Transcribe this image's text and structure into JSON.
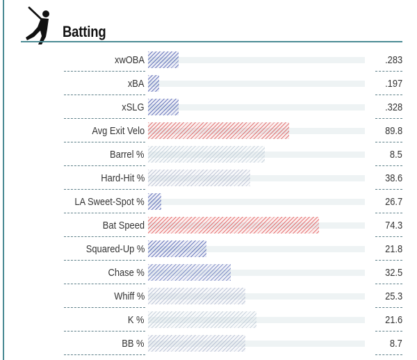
{
  "header": {
    "title": "Batting",
    "icon": "batter-icon"
  },
  "colors": {
    "accent": "#4a8a94"
  },
  "chart_data": {
    "type": "bar",
    "orientation": "horizontal",
    "title": "Batting",
    "categories": [
      "xwOBA",
      "xBA",
      "xSLG",
      "Avg Exit Velo",
      "Barrel %",
      "Hard-Hit %",
      "LA Sweet-Spot %",
      "Bat Speed",
      "Squared-Up %",
      "Chase %",
      "Whiff %",
      "K %",
      "BB %"
    ],
    "values": [
      "283",
      "197",
      "328",
      "89.8",
      "8.5",
      "38.6",
      "26.7",
      "74.3",
      "21.8",
      "32.5",
      "25.3",
      "21.6",
      "8.7"
    ],
    "value_labels": [
      ".283",
      ".197",
      ".328",
      "89.8",
      "8.5",
      "38.6",
      "26.7",
      "74.3",
      "21.8",
      "32.5",
      "25.3",
      "21.6",
      "8.7"
    ],
    "percentile_fill": [
      14,
      5,
      14,
      65,
      54,
      47,
      6,
      79,
      27,
      38,
      45,
      50,
      45
    ],
    "bar_colors": [
      "#3a4ea8",
      "#3a4ea8",
      "#3a4ea8",
      "#d84a4a",
      "#b7c5d2",
      "#aeb6cc",
      "#3a4ea8",
      "#e04848",
      "#3a4ea8",
      "#5d6fb8",
      "#a9b3cb",
      "#b7c5d2",
      "#a9b3cb"
    ],
    "xlim": [
      0,
      100
    ]
  }
}
